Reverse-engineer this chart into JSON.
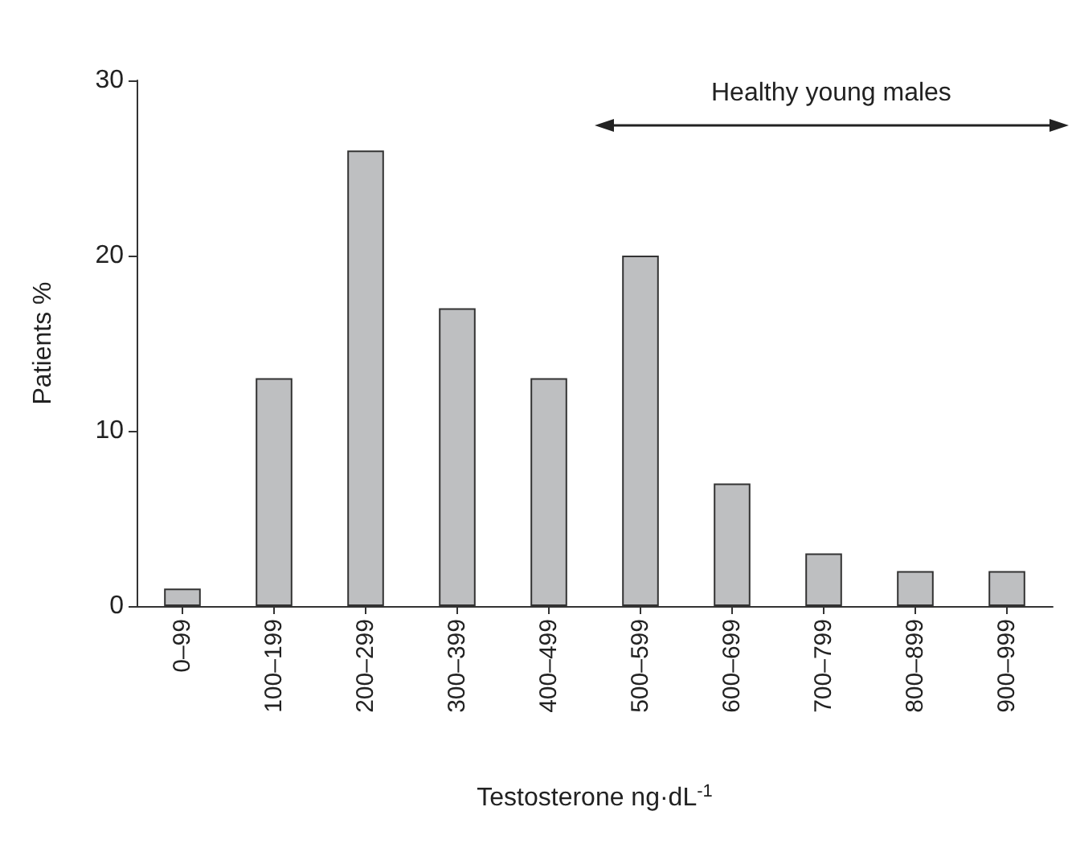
{
  "chart_data": {
    "type": "bar",
    "xlabel": "Testosterone ng·dL$^{-1}$",
    "ylabel": "Patients %",
    "categories": [
      "0–99",
      "100–199",
      "200–299",
      "300–399",
      "400–499",
      "500–599",
      "600–699",
      "700–799",
      "800–899",
      "900–999"
    ],
    "values": [
      1,
      13,
      26,
      17,
      13,
      20,
      7,
      3,
      2,
      2
    ],
    "color": "#bebfc1",
    "ylim": [
      0,
      30
    ],
    "yticks": [
      0,
      10,
      20,
      30
    ],
    "grid": false,
    "annotations": [
      "Healthy young males"
    ]
  }
}
